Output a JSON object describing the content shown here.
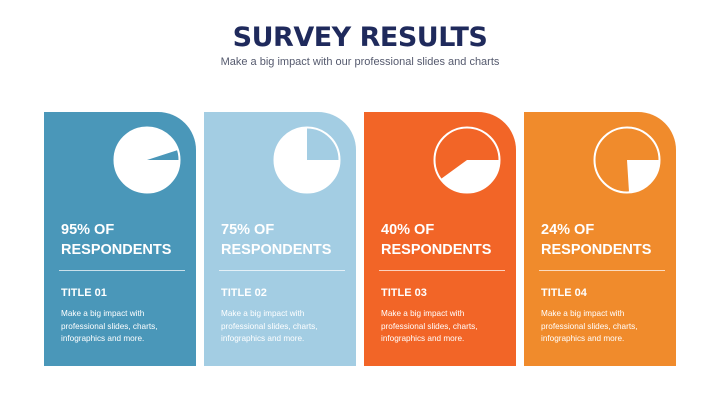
{
  "header": {
    "title": "SURVEY RESULTS",
    "subtitle": "Make a big impact with our professional slides and charts"
  },
  "cards": [
    {
      "percent_line": "95% OF",
      "respondents_line": "RESPONDENTS",
      "title": "TITLE 01",
      "description": "Make a big impact with professional slides, charts, infographics and more.",
      "value_percent": 95,
      "color": "#4a97b9",
      "pie_icon": "pie-chart-icon"
    },
    {
      "percent_line": "75% OF",
      "respondents_line": "RESPONDENTS",
      "title": "TITLE 02",
      "description": "Make a big impact with professional slides, charts, infographics and more.",
      "value_percent": 75,
      "color": "#a3cde3",
      "pie_icon": "pie-chart-icon"
    },
    {
      "percent_line": "40% OF",
      "respondents_line": "RESPONDENTS",
      "title": "TITLE 03",
      "description": "Make a big impact with professional slides, charts, infographics and more.",
      "value_percent": 40,
      "color": "#f26527",
      "pie_icon": "pie-chart-icon"
    },
    {
      "percent_line": "24% OF",
      "respondents_line": "RESPONDENTS",
      "title": "TITLE 04",
      "description": "Make a big impact with professional slides, charts, infographics and more.",
      "value_percent": 24,
      "color": "#f08b2c",
      "pie_icon": "pie-chart-icon"
    }
  ]
}
